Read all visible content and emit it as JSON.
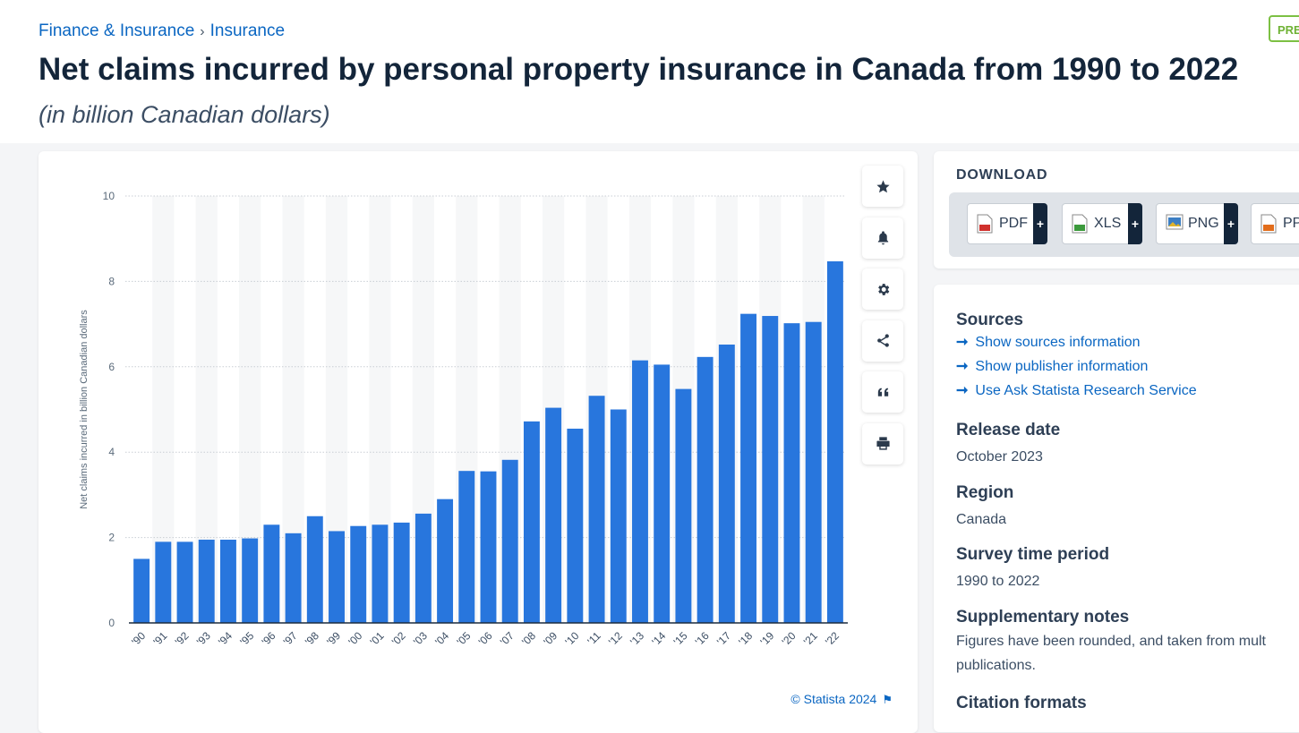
{
  "breadcrumb": {
    "parent": "Finance & Insurance",
    "current": "Insurance"
  },
  "page": {
    "title": "Net claims incurred by personal property insurance in Canada from 1990 to 2022",
    "subtitle": "(in billion Canadian dollars)",
    "premium_badge": "PRE"
  },
  "tools": [
    {
      "name": "favorite-star-icon"
    },
    {
      "name": "notification-bell-icon"
    },
    {
      "name": "settings-gear-icon"
    },
    {
      "name": "share-icon"
    },
    {
      "name": "cite-quote-icon"
    },
    {
      "name": "print-icon"
    }
  ],
  "credit": {
    "text": "© Statista 2024"
  },
  "download": {
    "title": "DOWNLOAD",
    "buttons": [
      {
        "label": "PDF",
        "color": "#d0312d"
      },
      {
        "label": "XLS",
        "color": "#3c9a3c"
      },
      {
        "label": "PNG",
        "color": "#3d7fc4"
      },
      {
        "label": "PP",
        "color": "#e26d1c"
      }
    ]
  },
  "info": {
    "sources_title": "Sources",
    "links": [
      "Show sources information",
      "Show publisher information",
      "Use Ask Statista Research Service"
    ],
    "release_title": "Release date",
    "release_value": "October 2023",
    "region_title": "Region",
    "region_value": "Canada",
    "survey_title": "Survey time period",
    "survey_value": "1990 to 2022",
    "notes_title": "Supplementary notes",
    "notes_line1": "Figures have been rounded, and taken from mult",
    "notes_line2": "publications.",
    "citation_title": "Citation formats"
  },
  "chart_data": {
    "type": "bar",
    "ylabel": "Net claims incurred in billion Canadian dollars",
    "ylim": [
      0,
      10
    ],
    "yticks": [
      0,
      2,
      4,
      6,
      8,
      10
    ],
    "grid": true,
    "bar_color": "#2876dd",
    "categories": [
      "'90",
      "'91",
      "'92",
      "'93",
      "'94",
      "'95",
      "'96",
      "'97",
      "'98",
      "'99",
      "'00",
      "'01",
      "'02",
      "'03",
      "'04",
      "'05",
      "'06",
      "'07",
      "'08",
      "'09",
      "'10",
      "'11",
      "'12",
      "'13",
      "'14",
      "'15",
      "'16",
      "'17",
      "'18",
      "'19",
      "'20",
      "'21",
      "'22"
    ],
    "values": [
      1.5,
      1.9,
      1.9,
      1.95,
      1.95,
      1.98,
      2.3,
      2.1,
      2.5,
      2.15,
      2.27,
      2.3,
      2.35,
      2.56,
      2.9,
      3.56,
      3.55,
      3.82,
      4.72,
      5.04,
      4.55,
      5.32,
      5.0,
      6.15,
      6.05,
      5.48,
      6.23,
      6.52,
      7.24,
      7.19,
      7.02,
      7.05,
      8.47
    ]
  }
}
